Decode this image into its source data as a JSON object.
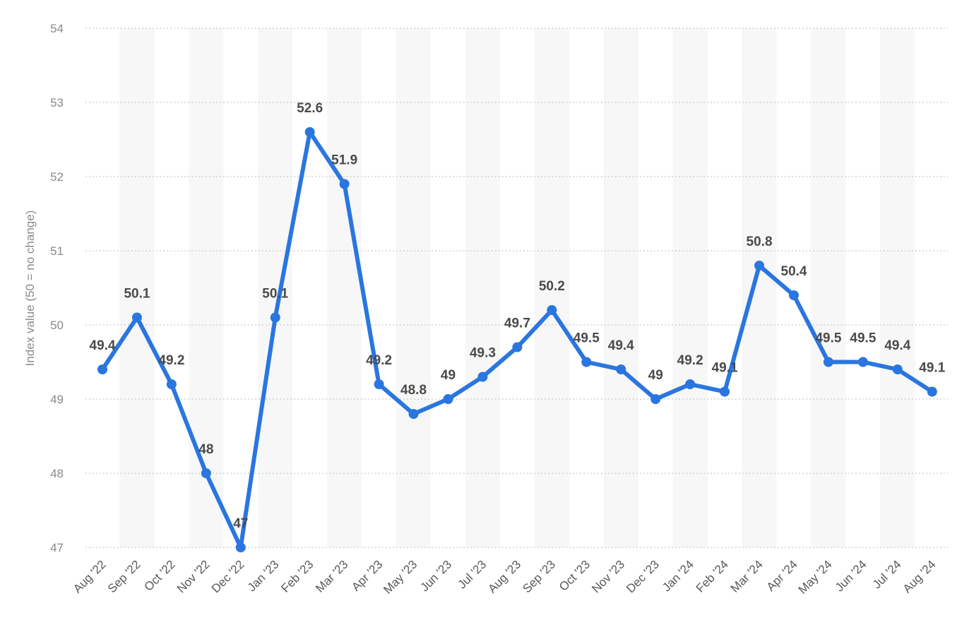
{
  "chart_data": {
    "type": "line",
    "title": "",
    "xlabel": "",
    "ylabel": "Index value (50 = no change)",
    "ylim": [
      47,
      54
    ],
    "yticks": [
      "47",
      "48",
      "49",
      "50",
      "51",
      "52",
      "53",
      "54"
    ],
    "grid": true,
    "legend": "none",
    "categories": [
      "Aug '22",
      "Sep '22",
      "Oct '22",
      "Nov '22",
      "Dec '22",
      "Jan '23",
      "Feb '23",
      "Mar '23",
      "Apr '23",
      "May '23",
      "Jun '23",
      "Jul '23",
      "Aug '23",
      "Sep '23",
      "Oct '23",
      "Nov '23",
      "Dec '23",
      "Jan '24",
      "Feb '24",
      "Mar '24",
      "Apr '24",
      "May '24",
      "Jun '24",
      "Jul '24",
      "Aug '24"
    ],
    "series": [
      {
        "values": [
          49.4,
          50.1,
          49.2,
          48,
          47,
          50.1,
          52.6,
          51.9,
          49.2,
          48.8,
          49,
          49.3,
          49.7,
          50.2,
          49.5,
          49.4,
          49,
          49.2,
          49.1,
          50.8,
          50.4,
          49.5,
          49.5,
          49.4,
          49.1
        ],
        "color": "#2a76e0"
      }
    ],
    "data_labels": [
      "49.4",
      "50.1",
      "49.2",
      "48",
      "47",
      "50.1",
      "52.6",
      "51.9",
      "49.2",
      "48.8",
      "49",
      "49.3",
      "49.7",
      "50.2",
      "49.5",
      "49.4",
      "49",
      "49.2",
      "49.1",
      "50.8",
      "50.4",
      "49.5",
      "49.5",
      "49.4",
      "49.1"
    ],
    "colors": {
      "line": "#2a76e0",
      "band": "#f7f7f7",
      "grid": "#bdbdbd"
    }
  }
}
